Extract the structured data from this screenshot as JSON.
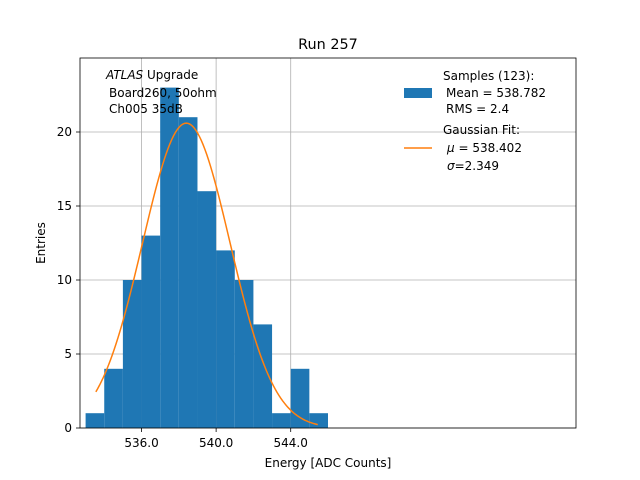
{
  "chart_data": {
    "type": "histogram",
    "title": "Run 257",
    "xlabel": "Energy [ADC Counts]",
    "ylabel": "Entries",
    "xlim": [
      32.7,
      59.3
    ],
    "ylim": [
      0,
      25
    ],
    "x_ticks": [
      {
        "value": 36,
        "label": "536.0"
      },
      {
        "value": 40,
        "label": "540.0"
      },
      {
        "value": 44,
        "label": "544.0"
      }
    ],
    "y_ticks": [
      0,
      5,
      10,
      15,
      20
    ],
    "grid": true,
    "bin_edges": [
      33,
      34,
      35,
      36,
      37,
      38,
      39,
      40,
      41,
      42,
      43,
      44,
      45,
      46
    ],
    "counts": [
      1,
      4,
      10,
      13,
      23,
      21,
      16,
      12,
      10,
      7,
      1,
      4,
      1
    ],
    "bar_color": "#1f77b4",
    "fit": {
      "name": "Gaussian Fit",
      "color": "#ff7f0e",
      "mu_offset": 38.402,
      "sigma": 2.349,
      "amplitude": 20.6,
      "x_range": [
        33.55,
        45.45
      ]
    },
    "annotation": {
      "italic": "ATLAS",
      "rest": " Upgrade",
      "line2": "Board260, 50ohm",
      "line3": "Ch005 35dB"
    },
    "legend": {
      "position": "top-right",
      "samples": {
        "label": "Samples (123):",
        "mean": "Mean = 538.782",
        "rms": "RMS = 2.4"
      },
      "gaussian": {
        "label": "Gaussian Fit:",
        "mu_sym": "μ",
        "mu_val": " = 538.402",
        "sigma_sym": "σ",
        "sigma_val": "=2.349"
      }
    }
  }
}
